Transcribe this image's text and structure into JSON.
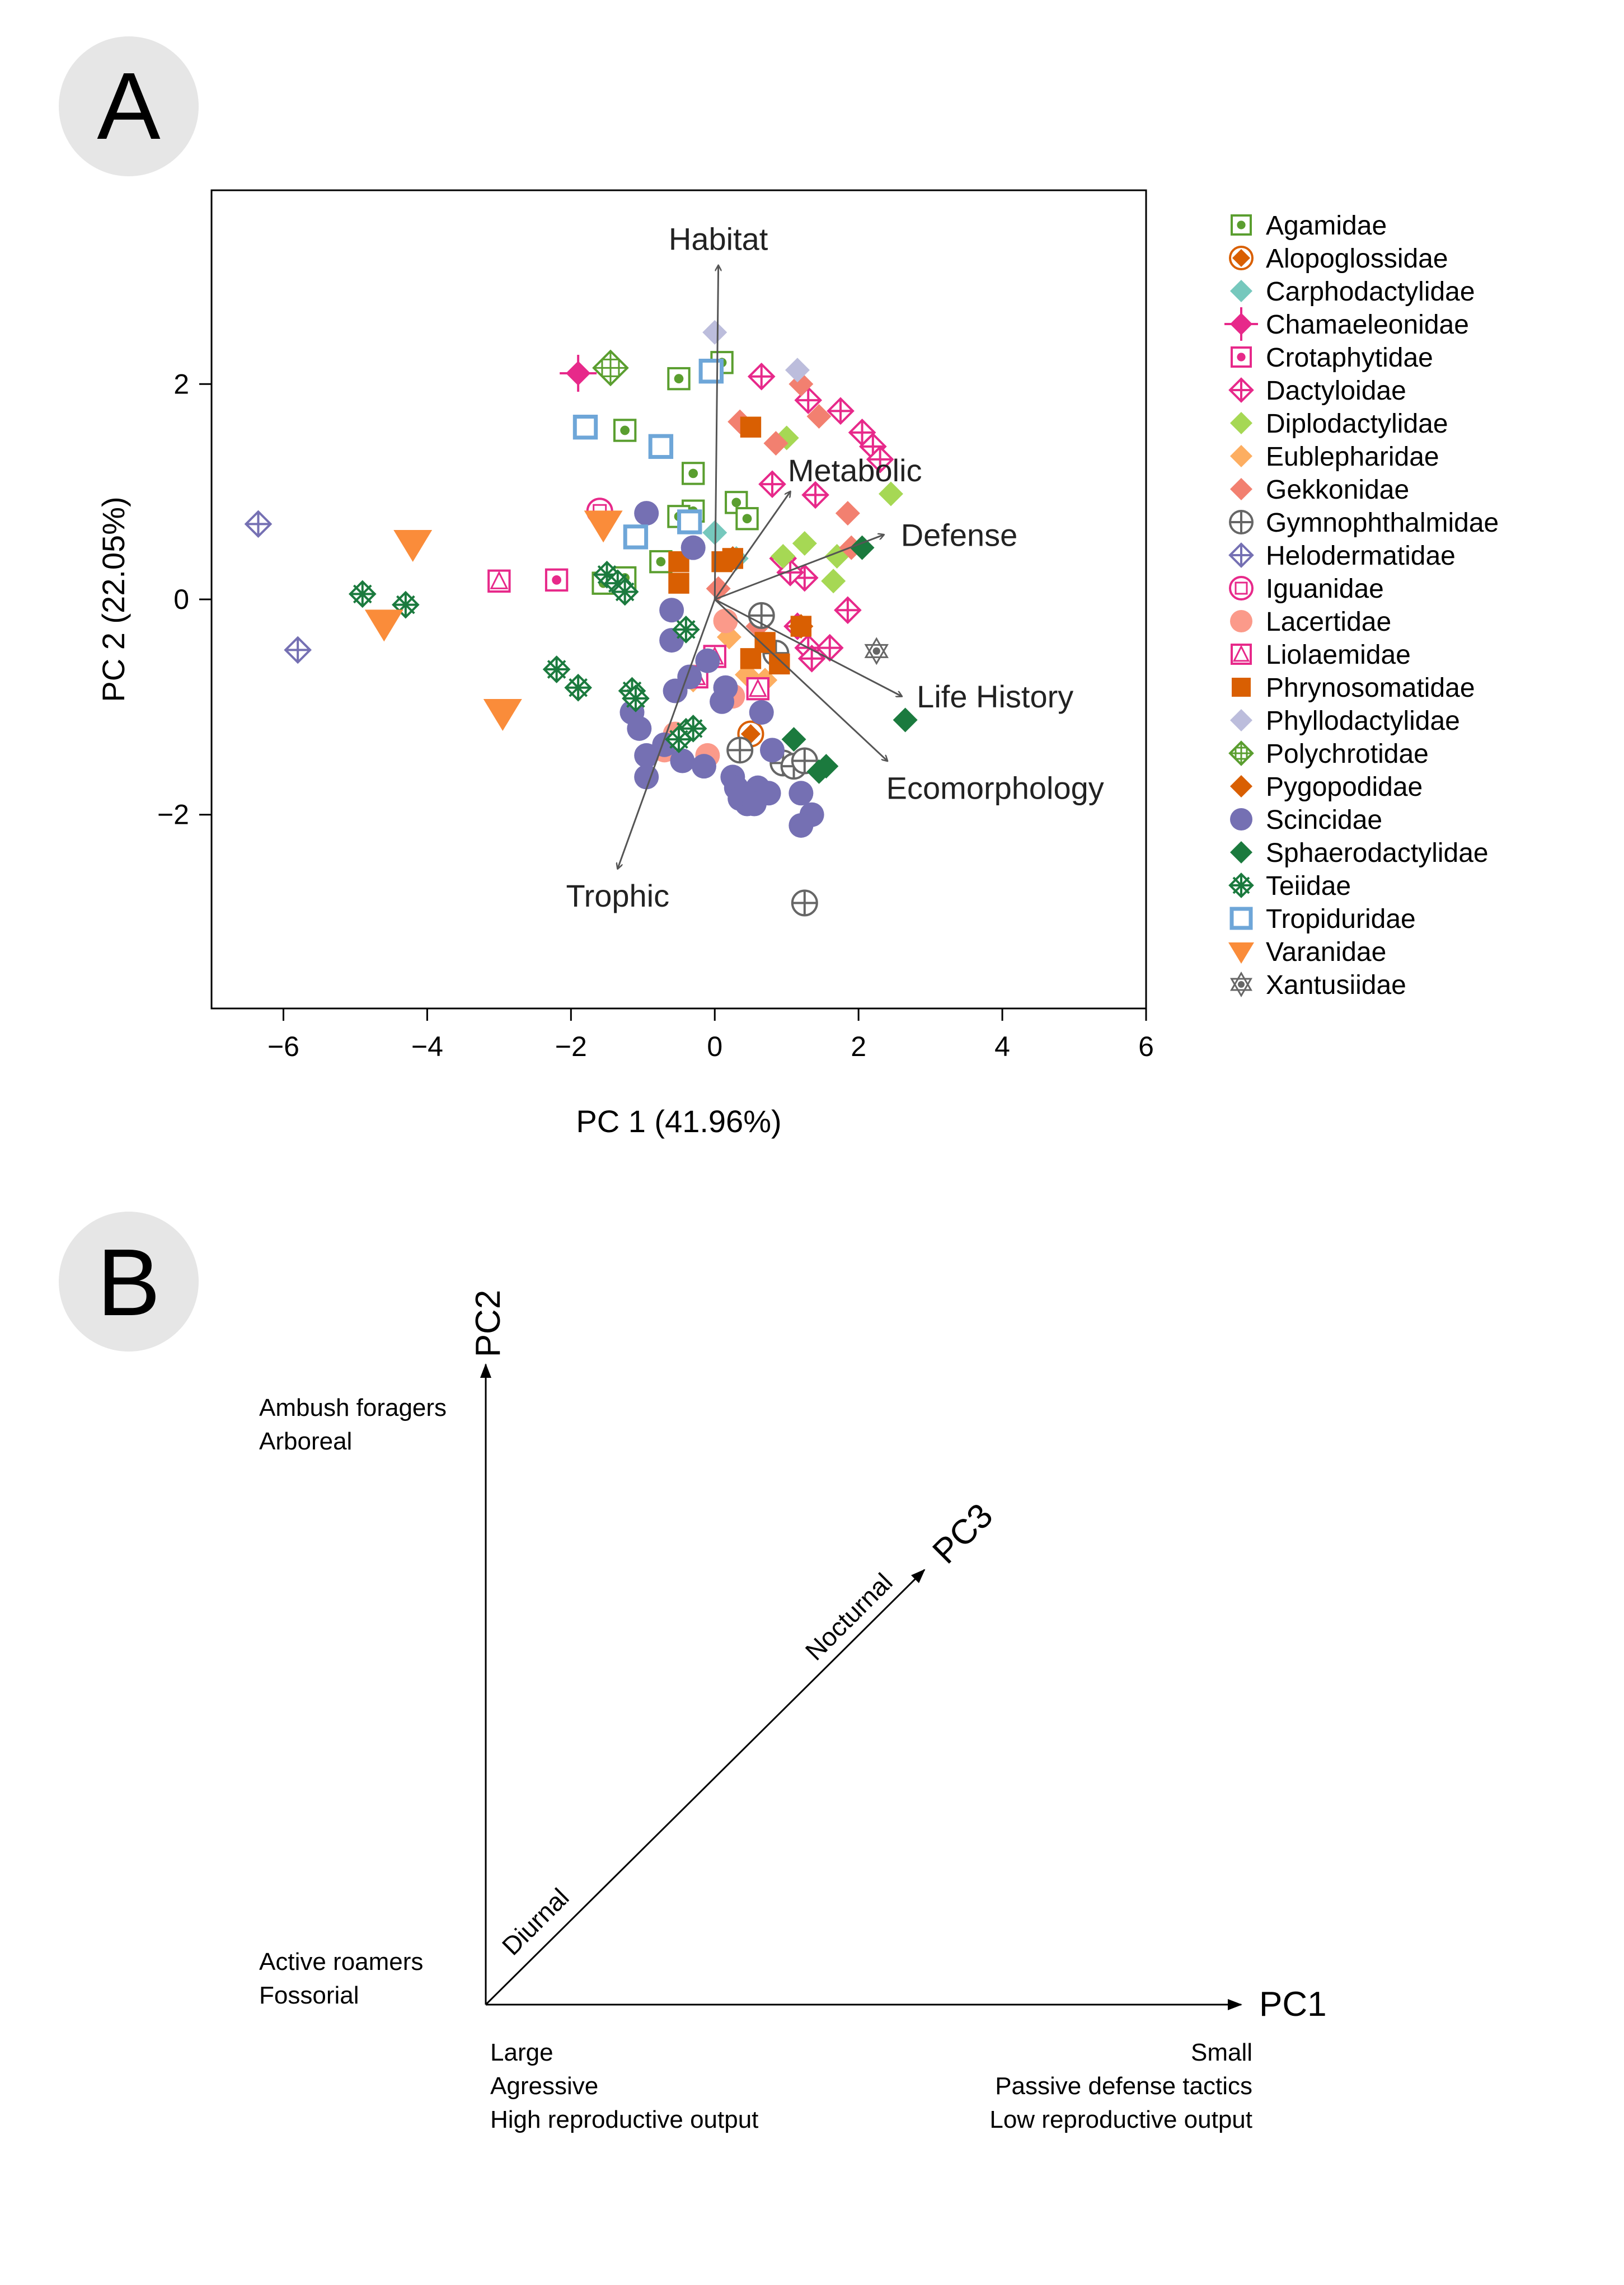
{
  "panels": {
    "a": {
      "letter": "A"
    },
    "b": {
      "letter": "B"
    }
  },
  "chart_data": [
    {
      "type": "scatter",
      "panel": "A",
      "xlabel": "PC 1 (41.96%)",
      "ylabel": "PC 2 (22.05%)",
      "xlim": [
        -7,
        6
      ],
      "ylim": [
        -3.8,
        3.8
      ],
      "xticks": [
        -6,
        -4,
        -2,
        0,
        2,
        4,
        6
      ],
      "yticks": [
        -2,
        0,
        2
      ],
      "xtick_labels": [
        "−6",
        "−4",
        "−2",
        "0",
        "2",
        "4",
        "6"
      ],
      "ytick_labels": [
        "−2",
        "0",
        "2"
      ],
      "grid": false,
      "legend_position": "right",
      "arrows": [
        {
          "label": "Habitat",
          "x": 0.05,
          "y": 3.1,
          "lx": 0.05,
          "ly": 3.35
        },
        {
          "label": "Metabolic",
          "x": 1.05,
          "y": 1.0,
          "lx": 1.95,
          "ly": 1.2
        },
        {
          "label": "Defense",
          "x": 2.35,
          "y": 0.6,
          "lx": 3.4,
          "ly": 0.6
        },
        {
          "label": "Life History",
          "x": 2.6,
          "y": -0.9,
          "lx": 3.9,
          "ly": -0.9
        },
        {
          "label": "Ecomorphology",
          "x": 2.4,
          "y": -1.5,
          "lx": 3.9,
          "ly": -1.75
        },
        {
          "label": "Trophic",
          "x": -1.35,
          "y": -2.5,
          "lx": -1.35,
          "ly": -2.75
        }
      ],
      "series": [
        {
          "name": "Agamidae",
          "color": "#5a9e2f",
          "marker": "square-dot",
          "points": [
            [
              0.1,
              2.2
            ],
            [
              -0.5,
              2.05
            ],
            [
              -1.25,
              1.57
            ],
            [
              -0.3,
              1.17
            ],
            [
              -0.3,
              0.82
            ],
            [
              0.3,
              0.9
            ],
            [
              0.45,
              0.75
            ],
            [
              -0.5,
              0.77
            ],
            [
              -0.75,
              0.35
            ],
            [
              -1.55,
              0.15
            ],
            [
              -1.25,
              0.2
            ]
          ]
        },
        {
          "name": "Alopoglossidae",
          "color": "#d95f02",
          "marker": "diamond-circle",
          "points": [
            [
              0.5,
              -1.25
            ]
          ]
        },
        {
          "name": "Carphodactylidae",
          "color": "#76c8bd",
          "marker": "diamond",
          "points": [
            [
              0.0,
              0.62
            ],
            [
              0.3,
              0.38
            ]
          ]
        },
        {
          "name": "Chamaeleonidae",
          "color": "#e7298a",
          "marker": "diamond-cross",
          "points": [
            [
              -1.9,
              2.1
            ]
          ]
        },
        {
          "name": "Crotaphytidae",
          "color": "#e7298a",
          "marker": "square-dot",
          "points": [
            [
              -2.2,
              0.18
            ]
          ]
        },
        {
          "name": "Dactyloidae",
          "color": "#e7298a",
          "marker": "diamond-plus",
          "points": [
            [
              0.65,
              2.07
            ],
            [
              1.3,
              1.85
            ],
            [
              1.75,
              1.75
            ],
            [
              2.05,
              1.55
            ],
            [
              2.2,
              1.42
            ],
            [
              2.3,
              1.3
            ],
            [
              0.8,
              1.07
            ],
            [
              1.4,
              0.97
            ],
            [
              0.95,
              0.38
            ],
            [
              1.25,
              0.2
            ],
            [
              1.85,
              -0.1
            ],
            [
              1.15,
              -0.25
            ],
            [
              1.3,
              -0.45
            ],
            [
              1.35,
              -0.55
            ],
            [
              1.6,
              -0.45
            ],
            [
              1.05,
              0.25
            ]
          ]
        },
        {
          "name": "Diplodactylidae",
          "color": "#a6d854",
          "marker": "diamond",
          "points": [
            [
              1.0,
              1.5
            ],
            [
              2.45,
              0.98
            ],
            [
              1.25,
              0.52
            ],
            [
              1.7,
              0.4
            ],
            [
              1.65,
              0.17
            ],
            [
              0.95,
              0.4
            ]
          ]
        },
        {
          "name": "Eublepharidae",
          "color": "#fdae61",
          "marker": "diamond",
          "points": [
            [
              0.2,
              -0.35
            ],
            [
              0.45,
              -0.7
            ],
            [
              0.7,
              -0.75
            ],
            [
              -0.3,
              -0.75
            ]
          ]
        },
        {
          "name": "Gekkonidae",
          "color": "#f28070",
          "marker": "diamond",
          "points": [
            [
              0.35,
              1.65
            ],
            [
              0.85,
              1.45
            ],
            [
              1.2,
              2.0
            ],
            [
              1.45,
              1.7
            ],
            [
              1.85,
              0.8
            ],
            [
              1.9,
              0.48
            ],
            [
              0.05,
              0.1
            ],
            [
              0.6,
              -0.25
            ]
          ]
        },
        {
          "name": "Gymnophthalmidae",
          "color": "#666666",
          "marker": "circle-cross",
          "points": [
            [
              0.65,
              -0.15
            ],
            [
              0.85,
              -0.5
            ],
            [
              0.35,
              -1.4
            ],
            [
              0.95,
              -1.52
            ],
            [
              1.1,
              -1.55
            ],
            [
              1.25,
              -1.5
            ],
            [
              1.25,
              -2.82
            ]
          ]
        },
        {
          "name": "Helodermatidae",
          "color": "#7570b3",
          "marker": "diamond-plus",
          "points": [
            [
              -6.35,
              0.7
            ],
            [
              -5.8,
              -0.47
            ]
          ]
        },
        {
          "name": "Iguanidae",
          "color": "#e7298a",
          "marker": "circle-ring",
          "points": [
            [
              -1.6,
              0.82
            ]
          ]
        },
        {
          "name": "Lacertidae",
          "color": "#fb9a8a",
          "marker": "circle",
          "points": [
            [
              0.15,
              -0.2
            ],
            [
              -0.3,
              -0.72
            ],
            [
              0.25,
              -0.9
            ],
            [
              -0.55,
              -1.25
            ],
            [
              -0.7,
              -1.4
            ],
            [
              -0.1,
              -1.45
            ]
          ]
        },
        {
          "name": "Liolaemidae",
          "color": "#e7298a",
          "marker": "triangle-square",
          "points": [
            [
              -3.0,
              0.17
            ],
            [
              0.0,
              -0.53
            ],
            [
              -0.25,
              -0.72
            ],
            [
              0.6,
              -0.83
            ]
          ]
        },
        {
          "name": "Phrynosomatidae",
          "color": "#d95f02",
          "marker": "square",
          "points": [
            [
              0.5,
              1.6
            ],
            [
              -0.5,
              0.35
            ],
            [
              -0.5,
              0.15
            ],
            [
              0.1,
              0.35
            ],
            [
              0.25,
              0.38
            ],
            [
              0.7,
              -0.4
            ],
            [
              0.5,
              -0.55
            ],
            [
              1.2,
              -0.25
            ],
            [
              0.9,
              -0.6
            ]
          ]
        },
        {
          "name": "Phyllodactylidae",
          "color": "#bcbddc",
          "marker": "diamond",
          "points": [
            [
              0.0,
              2.48
            ],
            [
              1.15,
              2.13
            ]
          ]
        },
        {
          "name": "Polychrotidae",
          "color": "#5a9e2f",
          "marker": "diamond-grid",
          "points": [
            [
              -1.45,
              2.15
            ]
          ]
        },
        {
          "name": "Pygopodidae",
          "color": "#d95f02",
          "marker": "diamond",
          "points": [
            [
              0.25,
              0.38
            ],
            [
              1.2,
              -0.25
            ]
          ]
        },
        {
          "name": "Scincidae",
          "color": "#7570b3",
          "marker": "circle",
          "points": [
            [
              -0.95,
              0.8
            ],
            [
              -0.3,
              0.48
            ],
            [
              -0.6,
              -0.1
            ],
            [
              -0.6,
              -0.38
            ],
            [
              -0.1,
              -0.57
            ],
            [
              -0.35,
              -0.72
            ],
            [
              -0.55,
              -0.85
            ],
            [
              0.15,
              -0.82
            ],
            [
              0.1,
              -0.95
            ],
            [
              -1.15,
              -1.05
            ],
            [
              -1.05,
              -1.2
            ],
            [
              -0.95,
              -1.45
            ],
            [
              -0.7,
              -1.35
            ],
            [
              -0.45,
              -1.5
            ],
            [
              -0.15,
              -1.55
            ],
            [
              -0.95,
              -1.65
            ],
            [
              0.25,
              -1.65
            ],
            [
              0.3,
              -1.75
            ],
            [
              0.6,
              -1.75
            ],
            [
              0.45,
              -1.85
            ],
            [
              0.45,
              -1.9
            ],
            [
              0.75,
              -1.8
            ],
            [
              0.35,
              -1.85
            ],
            [
              0.55,
              -1.9
            ],
            [
              1.2,
              -1.8
            ],
            [
              1.35,
              -2.0
            ],
            [
              1.2,
              -2.1
            ],
            [
              0.8,
              -1.4
            ],
            [
              0.65,
              -1.05
            ]
          ]
        },
        {
          "name": "Sphaerodactylidae",
          "color": "#1b7a3e",
          "marker": "diamond",
          "points": [
            [
              2.05,
              0.48
            ],
            [
              2.65,
              -1.12
            ],
            [
              1.1,
              -1.3
            ],
            [
              1.45,
              -1.6
            ],
            [
              1.55,
              -1.55
            ]
          ]
        },
        {
          "name": "Teiidae",
          "color": "#1b7a3e",
          "marker": "diamond-star",
          "points": [
            [
              -4.9,
              0.05
            ],
            [
              -4.3,
              -0.05
            ],
            [
              -1.5,
              0.23
            ],
            [
              -1.35,
              0.15
            ],
            [
              -1.25,
              0.07
            ],
            [
              -0.4,
              -0.28
            ],
            [
              -2.2,
              -0.65
            ],
            [
              -1.9,
              -0.82
            ],
            [
              -1.15,
              -0.85
            ],
            [
              -1.1,
              -0.92
            ],
            [
              -0.4,
              -1.23
            ],
            [
              -0.3,
              -1.2
            ],
            [
              -0.5,
              -1.3
            ]
          ]
        },
        {
          "name": "Tropiduridae",
          "color": "#6ea6d8",
          "marker": "square-ring",
          "points": [
            [
              -1.8,
              1.6
            ],
            [
              -0.75,
              1.42
            ],
            [
              -0.05,
              2.12
            ],
            [
              -1.1,
              0.58
            ],
            [
              -0.35,
              0.72
            ]
          ]
        },
        {
          "name": "Varanidae",
          "color": "#fa8c3a",
          "marker": "triangle-down",
          "points": [
            [
              -4.2,
              0.52
            ],
            [
              -4.6,
              -0.22
            ],
            [
              -2.95,
              -1.05
            ],
            [
              -1.55,
              0.7
            ]
          ]
        },
        {
          "name": "Xantusiidae",
          "color": "#666666",
          "marker": "hexstar",
          "points": [
            [
              2.25,
              -0.48
            ]
          ]
        }
      ]
    },
    {
      "type": "diagram",
      "panel": "B",
      "axes": [
        {
          "name": "PC1"
        },
        {
          "name": "PC2"
        },
        {
          "name": "PC3"
        }
      ],
      "annotations": {
        "pc2_high": [
          "Ambush foragers",
          "Arboreal"
        ],
        "pc2_low": [
          "Active roamers",
          "Fossorial"
        ],
        "pc1_low": [
          "Large",
          "Agressive",
          "High reproductive output"
        ],
        "pc1_high": [
          "Small",
          "Passive defense tactics",
          "Low reproductive output"
        ],
        "pc3_low": "Diurnal",
        "pc3_high": "Nocturnal"
      }
    }
  ]
}
